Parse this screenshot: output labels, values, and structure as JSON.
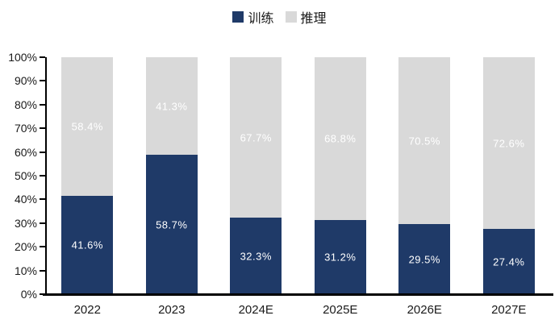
{
  "legend": {
    "items": [
      {
        "label": "训练",
        "color": "#1f3a68"
      },
      {
        "label": "推理",
        "color": "#d9d9d9"
      }
    ]
  },
  "chart_data": {
    "type": "bar",
    "stacked": true,
    "title": "",
    "xlabel": "",
    "ylabel": "",
    "categories": [
      "2022",
      "2023",
      "2024E",
      "2025E",
      "2026E",
      "2027E"
    ],
    "series": [
      {
        "name": "训练",
        "color": "#1f3a68",
        "values": [
          41.6,
          58.7,
          32.3,
          31.2,
          29.5,
          27.4
        ],
        "labels": [
          "41.6%",
          "58.7%",
          "32.3%",
          "31.2%",
          "29.5%",
          "27.4%"
        ]
      },
      {
        "name": "推理",
        "color": "#d9d9d9",
        "values": [
          58.4,
          41.3,
          67.7,
          68.8,
          70.5,
          72.6
        ],
        "labels": [
          "58.4%",
          "41.3%",
          "67.7%",
          "68.8%",
          "70.5%",
          "72.6%"
        ]
      }
    ],
    "ylim": [
      0,
      100
    ],
    "ytick_labels": [
      "0%",
      "10%",
      "20%",
      "30%",
      "40%",
      "50%",
      "60%",
      "70%",
      "80%",
      "90%",
      "100%"
    ],
    "grid": false,
    "legend_position": "top-center",
    "bar_label_color": "#ffffff",
    "axis_color": "#000000"
  }
}
